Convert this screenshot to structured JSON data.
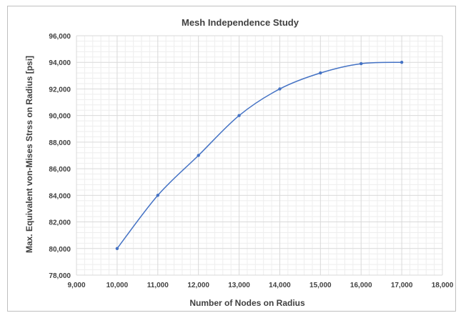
{
  "chart_data": {
    "type": "line",
    "title": "Mesh Independence Study",
    "xlabel": "Number of Nodes on Radius",
    "ylabel": "Max. Equivalent von-Mises Strss on Radius [psi]",
    "xlim": [
      9000,
      18000
    ],
    "ylim": [
      78000,
      96000
    ],
    "xticks": [
      "9,000",
      "10,000",
      "11,000",
      "12,000",
      "13,000",
      "14,000",
      "15,000",
      "16,000",
      "17,000",
      "18,000"
    ],
    "yticks": [
      "78,000",
      "80,000",
      "82,000",
      "84,000",
      "86,000",
      "88,000",
      "90,000",
      "92,000",
      "94,000",
      "96,000"
    ],
    "grid": true,
    "legend": "none",
    "series": [
      {
        "color": "#4472c4",
        "x": [
          10000,
          11000,
          12000,
          13000,
          14000,
          15000,
          16000,
          17000
        ],
        "y": [
          80000,
          84000,
          87000,
          90000,
          92000,
          93200,
          93900,
          94000
        ]
      }
    ]
  }
}
